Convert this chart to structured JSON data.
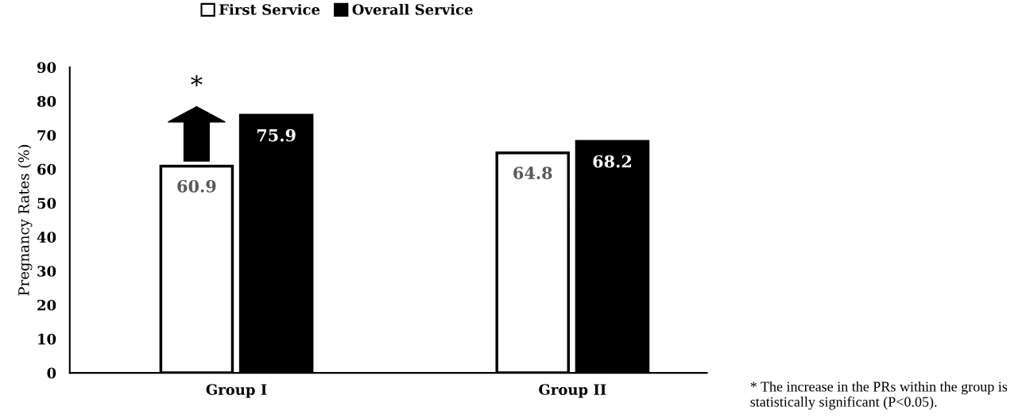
{
  "chart_data": {
    "type": "bar",
    "ylabel": "Pregnancy Rates (%)",
    "categories": [
      "Group I",
      "Group II"
    ],
    "series": [
      {
        "name": "First Service",
        "color": "#ffffff",
        "values": [
          60.9,
          64.8
        ]
      },
      {
        "name": "Overall Service",
        "color": "#000000",
        "values": [
          75.9,
          68.2
        ]
      }
    ],
    "ylim": [
      0,
      90
    ],
    "yticks": [
      0,
      10,
      20,
      30,
      40,
      50,
      60,
      70,
      80,
      90
    ],
    "data_labels": true,
    "legend": "top",
    "grid": false,
    "annotations": [
      "*",
      "* The increase in the PRs within the group is statistically significant (P<0.05)."
    ]
  }
}
